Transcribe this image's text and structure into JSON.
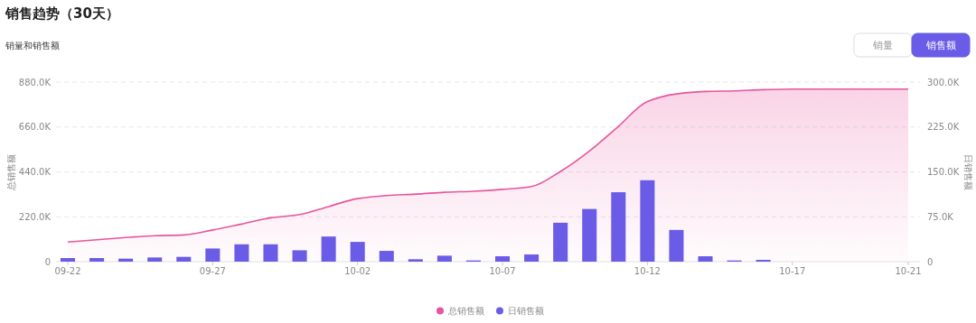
{
  "chart_data": {
    "type": "bar",
    "title": "销售趋势（30天）",
    "subtitle": "销量和销售额",
    "ylabel": "总销售额",
    "y2label": "日销售额",
    "annotations": [
      "销量",
      "销售额"
    ],
    "categories": [
      "09-22",
      null,
      null,
      null,
      null,
      "09-27",
      null,
      null,
      null,
      null,
      "10-02",
      null,
      null,
      null,
      null,
      "10-07",
      null,
      null,
      null,
      null,
      "10-12",
      null,
      null,
      null,
      null,
      "10-17",
      null,
      null,
      null,
      "10-21"
    ],
    "series": [
      {
        "name": "总销售额",
        "type": "area",
        "color": "#e8549e",
        "values": [
          96000,
          107000,
          118000,
          127000,
          131000,
          155000,
          184000,
          215000,
          231000,
          270000,
          309000,
          324000,
          331000,
          340000,
          345000,
          354000,
          368000,
          442000,
          542000,
          663000,
          785000,
          822000,
          834000,
          837000,
          843000,
          846000,
          846000,
          846000,
          846000,
          846000
        ]
      },
      {
        "name": "日销售额",
        "axis": "y2",
        "color": "#6b5ce7",
        "values": [
          6000,
          6000,
          5000,
          7000,
          8000,
          22000,
          29000,
          29000,
          19000,
          42000,
          33000,
          18000,
          4000,
          10000,
          2000,
          9000,
          12000,
          65000,
          88000,
          116000,
          136000,
          53000,
          9000,
          2000,
          3000,
          0,
          0,
          0,
          0,
          0
        ]
      }
    ],
    "ylim": [
      0,
      880000
    ],
    "yticks": [
      0,
      {
        "value": 220000,
        "label": "220.0K"
      },
      {
        "value": 440000,
        "label": "440.0K"
      },
      {
        "value": 660000,
        "label": "660.0K"
      },
      {
        "value": 880000,
        "label": "880.0K"
      }
    ],
    "y2lim": [
      0,
      300000
    ],
    "y2ticks": [
      0,
      {
        "value": 75000,
        "label": "75.0K"
      },
      {
        "value": 150000,
        "label": "150.0K"
      },
      {
        "value": 225000,
        "label": "225.0K"
      },
      {
        "value": 300000,
        "label": "300.0K"
      }
    ],
    "grid": "y",
    "legend": "bottom"
  }
}
